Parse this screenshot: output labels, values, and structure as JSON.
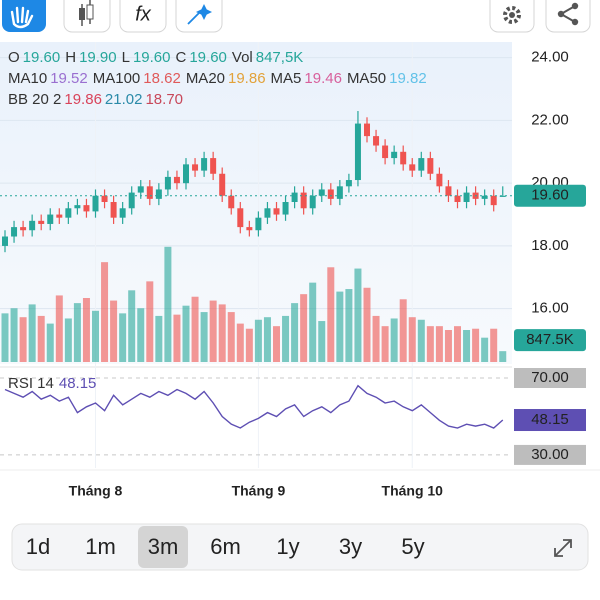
{
  "toolbar": {
    "formula_icon": "fx"
  },
  "legend": [
    [
      {
        "text": "O"
      },
      {
        "text": "19.60",
        "color": "#26a69a"
      },
      {
        "text": "H"
      },
      {
        "text": "19.90",
        "color": "#26a69a"
      },
      {
        "text": "L"
      },
      {
        "text": "19.60",
        "color": "#26a69a"
      },
      {
        "text": "C"
      },
      {
        "text": "19.60",
        "color": "#26a69a"
      },
      {
        "text": "Vol"
      },
      {
        "text": "847,5K",
        "color": "#26a69a"
      }
    ],
    [
      {
        "text": "MA10"
      },
      {
        "text": "19.52",
        "color": "#9a6fd0"
      },
      {
        "text": "MA100"
      },
      {
        "text": "18.62",
        "color": "#e05a5a"
      },
      {
        "text": "MA20"
      },
      {
        "text": "19.86",
        "color": "#e2a23a"
      },
      {
        "text": "MA5"
      },
      {
        "text": "19.46",
        "color": "#d8609c"
      },
      {
        "text": "MA50"
      },
      {
        "text": "19.82",
        "color": "#62c2e8"
      }
    ],
    [
      {
        "text": "BB 20 2"
      },
      {
        "text": "19.86",
        "color": "#d9435a"
      },
      {
        "text": "21.02",
        "color": "#2a8aa8"
      },
      {
        "text": "18.70",
        "color": "#c8485a"
      }
    ]
  ],
  "chart_data": {
    "type": "candlestick",
    "up_color": "#26a69a",
    "down_color": "#ef5350",
    "open": [
      18.0,
      18.3,
      18.6,
      18.5,
      18.8,
      18.7,
      19.0,
      18.9,
      19.2,
      19.3,
      19.1,
      19.6,
      19.4,
      18.9,
      19.2,
      19.7,
      19.9,
      19.5,
      19.8,
      20.2,
      20.0,
      20.6,
      20.4,
      20.8,
      20.3,
      19.6,
      19.2,
      18.6,
      18.5,
      18.9,
      19.2,
      19.0,
      19.4,
      19.7,
      19.2,
      19.6,
      19.8,
      19.5,
      19.9,
      20.1,
      21.9,
      21.5,
      21.2,
      20.8,
      21.0,
      20.6,
      20.4,
      20.8,
      20.3,
      19.9,
      19.6,
      19.4,
      19.7,
      19.5,
      19.6,
      19.6
    ],
    "high": [
      18.5,
      18.8,
      18.8,
      19.0,
      19.0,
      19.2,
      19.2,
      19.4,
      19.5,
      19.5,
      19.8,
      19.8,
      19.6,
      19.4,
      19.9,
      20.1,
      20.1,
      20.0,
      20.4,
      20.4,
      20.8,
      20.8,
      21.0,
      21.0,
      20.5,
      19.8,
      19.4,
      18.8,
      19.1,
      19.4,
      19.4,
      19.6,
      19.9,
      19.9,
      19.8,
      20.0,
      20.0,
      20.1,
      20.3,
      22.3,
      22.1,
      21.7,
      21.4,
      21.2,
      21.2,
      20.8,
      21.0,
      21.0,
      20.5,
      20.1,
      19.8,
      19.9,
      19.9,
      19.8,
      19.8,
      19.9
    ],
    "low": [
      17.8,
      18.1,
      18.3,
      18.3,
      18.5,
      18.5,
      18.7,
      18.7,
      19.0,
      18.9,
      18.9,
      19.2,
      18.7,
      18.7,
      19.0,
      19.5,
      19.3,
      19.3,
      19.6,
      19.8,
      19.8,
      20.2,
      20.2,
      20.1,
      19.4,
      19.0,
      18.4,
      18.3,
      18.3,
      18.7,
      18.8,
      18.8,
      19.2,
      19.0,
      19.0,
      19.4,
      19.3,
      19.3,
      19.7,
      19.9,
      21.3,
      21.0,
      20.6,
      20.6,
      20.4,
      20.2,
      20.2,
      20.1,
      19.7,
      19.4,
      19.2,
      19.2,
      19.3,
      19.3,
      19.1,
      19.6
    ],
    "close": [
      18.3,
      18.6,
      18.5,
      18.8,
      18.7,
      19.0,
      18.9,
      19.2,
      19.3,
      19.1,
      19.6,
      19.4,
      18.9,
      19.2,
      19.7,
      19.9,
      19.5,
      19.8,
      20.2,
      20.0,
      20.6,
      20.4,
      20.8,
      20.3,
      19.6,
      19.2,
      18.6,
      18.5,
      18.9,
      19.2,
      19.0,
      19.4,
      19.7,
      19.2,
      19.6,
      19.8,
      19.5,
      19.9,
      20.1,
      21.9,
      21.5,
      21.2,
      20.8,
      21.0,
      20.6,
      20.4,
      20.8,
      20.3,
      19.9,
      19.6,
      19.4,
      19.7,
      19.5,
      19.6,
      19.3,
      19.6
    ],
    "ylim": [
      14.3,
      24.5
    ],
    "yticks": [
      {
        "value": 24,
        "label": "24.00"
      },
      {
        "value": 22,
        "label": "22.00"
      },
      {
        "value": 20,
        "label": "20.00"
      },
      {
        "value": 18,
        "label": "18.00"
      },
      {
        "value": 16,
        "label": "16.00"
      }
    ],
    "last_price": 19.6,
    "last_price_label": "19.60",
    "xticks": [
      {
        "value": 10,
        "label": "Tháng 8"
      },
      {
        "value": 28,
        "label": "Tháng 9"
      },
      {
        "value": 45,
        "label": "Tháng 10"
      }
    ],
    "volume": {
      "values": [
        3800,
        4200,
        3500,
        4500,
        3600,
        3000,
        5200,
        3400,
        4600,
        5000,
        4000,
        7800,
        4800,
        3800,
        5600,
        4200,
        6300,
        3600,
        9000,
        3700,
        4400,
        5100,
        3900,
        4800,
        4500,
        3900,
        3000,
        2600,
        3300,
        3500,
        2800,
        3600,
        4600,
        5300,
        6200,
        3200,
        7400,
        5500,
        5700,
        7300,
        5800,
        3600,
        2800,
        3400,
        4900,
        3500,
        3300,
        2800,
        2800,
        2500,
        2800,
        2500,
        2600,
        1900,
        2600,
        847.5
      ],
      "ylim": [
        0,
        25000
      ],
      "label": "847.5K"
    },
    "rsi": {
      "title": "RSI 14",
      "values": [
        64,
        62,
        60,
        63,
        59,
        61,
        58,
        60,
        52,
        55,
        57,
        53,
        61,
        56,
        59,
        62,
        60,
        63,
        61,
        64,
        62,
        59,
        63,
        57,
        50,
        46,
        44,
        47,
        49,
        52,
        50,
        54,
        56,
        50,
        53,
        55,
        52,
        56,
        58,
        66,
        62,
        60,
        57,
        58,
        55,
        53,
        56,
        52,
        48,
        45,
        44,
        46,
        45,
        46,
        44,
        48.15
      ],
      "value_label": "48.15",
      "color": "#5e4fb3",
      "ylim": [
        23.2,
        75.2
      ],
      "yticks": [
        {
          "value": 70,
          "label": "70.00"
        },
        {
          "value": 30,
          "label": "30.00"
        }
      ]
    }
  },
  "ranges": [
    "1d",
    "1m",
    "3m",
    "6m",
    "1y",
    "3y",
    "5y"
  ],
  "selected_range": 2
}
